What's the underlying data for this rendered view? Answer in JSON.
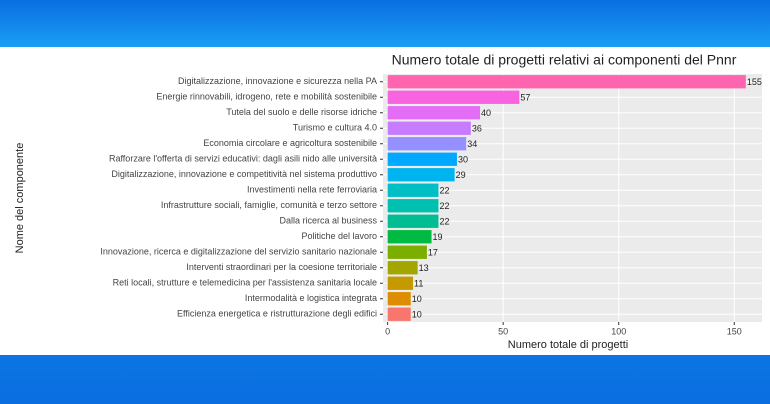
{
  "chart_data": {
    "type": "barh",
    "title": "Numero totale di progetti relativi ai componenti del Pnnr",
    "x_label": "Numero totale di progetti",
    "y_label": "Nome del componente",
    "categories": [
      "Digitalizzazione, innovazione e sicurezza nella PA",
      "Energie rinnovabili, idrogeno, rete e mobilità sostenibile",
      "Tutela del suolo e delle risorse idriche",
      "Turismo e cultura 4.0",
      "Economia circolare e agricoltura sostenibile",
      "Rafforzare l'offerta di servizi educativi: dagli asili nido alle università",
      "Digitalizzazione, innovazione e competitività nel sistema produttivo",
      "Investimenti nella rete ferroviaria",
      "Infrastrutture sociali, famiglie, comunità e terzo settore",
      "Dalla ricerca al business",
      "Politiche del lavoro",
      "Innovazione, ricerca e digitalizzazione del servizio sanitario nazionale",
      "Interventi straordinari per la coesione territoriale",
      "Reti locali, strutture e telemedicina per l'assistenza sanitaria locale",
      "Intermodalità e logistica integrata",
      "Efficienza energetica e ristrutturazione degli edifici"
    ],
    "values": [
      155,
      57,
      40,
      36,
      34,
      30,
      29,
      22,
      22,
      22,
      19,
      17,
      13,
      11,
      10,
      10
    ],
    "colors": [
      "#FF65AE",
      "#F863DF",
      "#E46DF6",
      "#C77CFF",
      "#9590FF",
      "#00A8FF",
      "#00B4EF",
      "#00BFC4",
      "#00C0AF",
      "#00BD92",
      "#00BA42",
      "#7CAE00",
      "#A3A500",
      "#C49A00",
      "#DE8C00",
      "#F8766D"
    ],
    "xlim": [
      -2,
      162
    ],
    "xticks": [
      0,
      50,
      100,
      150
    ],
    "grid": true
  }
}
